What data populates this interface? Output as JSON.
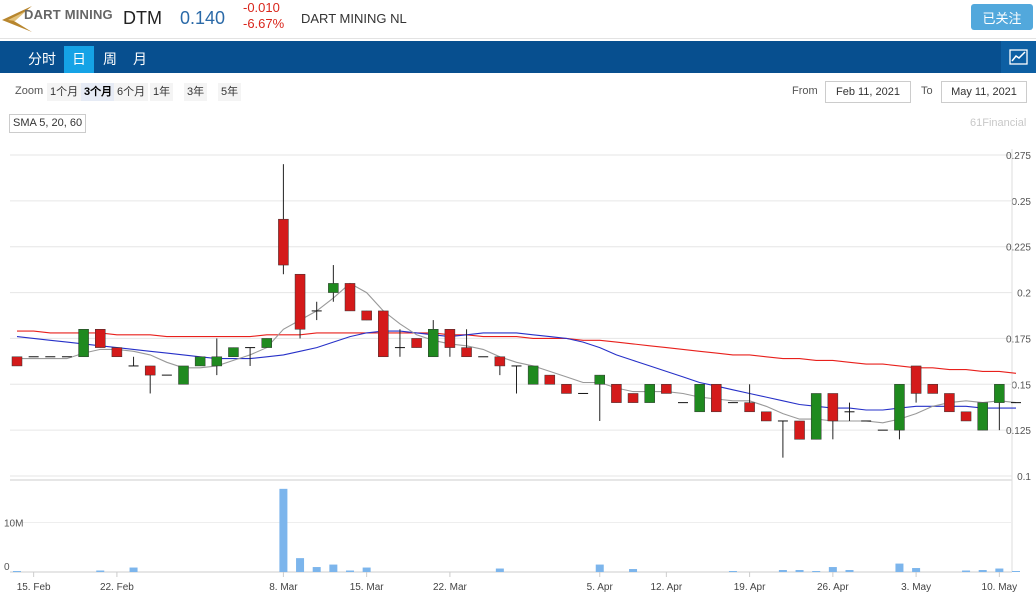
{
  "header": {
    "logo_text": "DART MINING",
    "ticker": "DTM",
    "price": "0.140",
    "change": "-0.010",
    "change_pct": "-6.67%",
    "company": "DART MINING NL",
    "follow_label": "已关注"
  },
  "nav": {
    "tabs": [
      "分时",
      "日",
      "周",
      "月"
    ],
    "active": 1
  },
  "zoom": {
    "label": "Zoom",
    "options": [
      "1个月",
      "3个月",
      "6个月",
      "1年",
      "3年",
      "5年"
    ],
    "selected": 1
  },
  "range": {
    "from_label": "From",
    "from": "Feb 11, 2021",
    "to_label": "To",
    "to": "May 11, 2021"
  },
  "indicator_label": "SMA 5, 20, 60",
  "credit": "61Financial",
  "colors": {
    "up": "#1f8a1f",
    "down": "#d41a1a",
    "sma5": "#999999",
    "sma20": "#2630c8",
    "sma60": "#e8201c",
    "volume": "#7cb5ec",
    "nav_bg": "#074f8f",
    "nav_active": "#15a3e6"
  },
  "chart_data": {
    "type": "candlestick",
    "ylim": [
      0.1,
      0.275
    ],
    "yticks": [
      "0.275",
      "0.25",
      "0.225",
      "0.2",
      "0.175",
      "0.15",
      "0.125",
      "0.1"
    ],
    "volume_ticks": [
      "10M",
      "0"
    ],
    "xticks": [
      {
        "label": "15. Feb",
        "i": 1
      },
      {
        "label": "22. Feb",
        "i": 6
      },
      {
        "label": "8. Mar",
        "i": 16
      },
      {
        "label": "15. Mar",
        "i": 21
      },
      {
        "label": "22. Mar",
        "i": 26
      },
      {
        "label": "5. Apr",
        "i": 35
      },
      {
        "label": "12. Apr",
        "i": 39
      },
      {
        "label": "19. Apr",
        "i": 44
      },
      {
        "label": "26. Apr",
        "i": 49
      },
      {
        "label": "3. May",
        "i": 54
      },
      {
        "label": "10. May",
        "i": 59
      }
    ],
    "ohlc": [
      [
        0.165,
        0.165,
        0.16,
        0.16
      ],
      [
        0.165,
        0.165,
        0.165,
        0.165
      ],
      [
        0.165,
        0.165,
        0.165,
        0.165
      ],
      [
        0.165,
        0.165,
        0.165,
        0.165
      ],
      [
        0.165,
        0.18,
        0.165,
        0.18
      ],
      [
        0.18,
        0.18,
        0.17,
        0.17
      ],
      [
        0.17,
        0.17,
        0.165,
        0.165
      ],
      [
        0.16,
        0.165,
        0.16,
        0.16
      ],
      [
        0.16,
        0.16,
        0.145,
        0.155
      ],
      [
        0.155,
        0.155,
        0.155,
        0.155
      ],
      [
        0.15,
        0.16,
        0.15,
        0.16
      ],
      [
        0.16,
        0.165,
        0.16,
        0.165
      ],
      [
        0.16,
        0.175,
        0.155,
        0.165
      ],
      [
        0.165,
        0.17,
        0.165,
        0.17
      ],
      [
        0.17,
        0.17,
        0.16,
        0.17
      ],
      [
        0.17,
        0.175,
        0.17,
        0.175
      ],
      [
        0.24,
        0.27,
        0.21,
        0.215
      ],
      [
        0.21,
        0.21,
        0.175,
        0.18
      ],
      [
        0.19,
        0.195,
        0.185,
        0.19
      ],
      [
        0.2,
        0.215,
        0.195,
        0.205
      ],
      [
        0.205,
        0.205,
        0.19,
        0.19
      ],
      [
        0.19,
        0.19,
        0.185,
        0.185
      ],
      [
        0.19,
        0.19,
        0.165,
        0.165
      ],
      [
        0.17,
        0.18,
        0.165,
        0.17
      ],
      [
        0.175,
        0.175,
        0.17,
        0.17
      ],
      [
        0.165,
        0.185,
        0.165,
        0.18
      ],
      [
        0.18,
        0.18,
        0.165,
        0.17
      ],
      [
        0.17,
        0.18,
        0.165,
        0.165
      ],
      [
        0.165,
        0.165,
        0.165,
        0.165
      ],
      [
        0.165,
        0.165,
        0.155,
        0.16
      ],
      [
        0.16,
        0.16,
        0.145,
        0.16
      ],
      [
        0.15,
        0.16,
        0.15,
        0.16
      ],
      [
        0.155,
        0.155,
        0.15,
        0.15
      ],
      [
        0.15,
        0.15,
        0.145,
        0.145
      ],
      [
        0.145,
        0.145,
        0.145,
        0.145
      ],
      [
        0.15,
        0.155,
        0.13,
        0.155
      ],
      [
        0.15,
        0.15,
        0.14,
        0.14
      ],
      [
        0.145,
        0.145,
        0.14,
        0.14
      ],
      [
        0.14,
        0.15,
        0.14,
        0.15
      ],
      [
        0.15,
        0.15,
        0.145,
        0.145
      ],
      [
        0.14,
        0.14,
        0.14,
        0.14
      ],
      [
        0.135,
        0.15,
        0.135,
        0.15
      ],
      [
        0.15,
        0.15,
        0.135,
        0.135
      ],
      [
        0.14,
        0.14,
        0.14,
        0.14
      ],
      [
        0.14,
        0.15,
        0.135,
        0.135
      ],
      [
        0.135,
        0.135,
        0.13,
        0.13
      ],
      [
        0.13,
        0.13,
        0.11,
        0.13
      ],
      [
        0.13,
        0.13,
        0.12,
        0.12
      ],
      [
        0.12,
        0.145,
        0.12,
        0.145
      ],
      [
        0.145,
        0.145,
        0.12,
        0.13
      ],
      [
        0.135,
        0.14,
        0.13,
        0.135
      ],
      [
        0.13,
        0.13,
        0.13,
        0.13
      ],
      [
        0.125,
        0.125,
        0.125,
        0.125
      ],
      [
        0.125,
        0.15,
        0.12,
        0.15
      ],
      [
        0.16,
        0.16,
        0.14,
        0.145
      ],
      [
        0.15,
        0.15,
        0.145,
        0.145
      ],
      [
        0.145,
        0.145,
        0.135,
        0.135
      ],
      [
        0.135,
        0.135,
        0.13,
        0.13
      ],
      [
        0.125,
        0.14,
        0.125,
        0.14
      ],
      [
        0.14,
        0.15,
        0.125,
        0.15
      ],
      [
        0.14,
        0.14,
        0.14,
        0.14
      ]
    ],
    "volume": [
      0.2,
      0,
      0,
      0,
      0,
      0.3,
      0,
      0.9,
      0,
      0,
      0,
      0,
      0,
      0,
      0,
      0,
      16.8,
      2.8,
      1.0,
      1.5,
      0.3,
      0.9,
      0,
      0,
      0,
      0,
      0,
      0,
      0,
      0.7,
      0,
      0,
      0,
      0,
      0,
      1.5,
      0,
      0.6,
      0,
      0,
      0,
      0,
      0,
      0.2,
      0,
      0,
      0.4,
      0.4,
      0.2,
      1.0,
      0.4,
      0,
      0,
      1.7,
      0.8,
      0,
      0,
      0.3,
      0.4,
      0.7,
      0.2
    ],
    "sma5": [
      0.164,
      0.164,
      0.164,
      0.164,
      0.167,
      0.169,
      0.169,
      0.168,
      0.166,
      0.162,
      0.159,
      0.159,
      0.16,
      0.163,
      0.166,
      0.17,
      0.18,
      0.185,
      0.19,
      0.197,
      0.205,
      0.2,
      0.19,
      0.183,
      0.177,
      0.174,
      0.172,
      0.171,
      0.169,
      0.165,
      0.162,
      0.16,
      0.157,
      0.154,
      0.151,
      0.151,
      0.148,
      0.146,
      0.146,
      0.146,
      0.145,
      0.143,
      0.142,
      0.141,
      0.141,
      0.138,
      0.134,
      0.131,
      0.131,
      0.13,
      0.13,
      0.13,
      0.129,
      0.131,
      0.134,
      0.138,
      0.14,
      0.141,
      0.14,
      0.141,
      0.14
    ],
    "sma20": [
      0.176,
      0.175,
      0.174,
      0.173,
      0.172,
      0.171,
      0.17,
      0.169,
      0.168,
      0.167,
      0.166,
      0.165,
      0.164,
      0.164,
      0.164,
      0.165,
      0.166,
      0.168,
      0.17,
      0.173,
      0.176,
      0.178,
      0.179,
      0.179,
      0.178,
      0.177,
      0.176,
      0.177,
      0.178,
      0.178,
      0.178,
      0.177,
      0.176,
      0.175,
      0.173,
      0.17,
      0.166,
      0.163,
      0.16,
      0.157,
      0.154,
      0.151,
      0.149,
      0.147,
      0.145,
      0.143,
      0.141,
      0.139,
      0.138,
      0.137,
      0.137,
      0.136,
      0.136,
      0.137,
      0.138,
      0.138,
      0.138,
      0.138,
      0.137,
      0.137,
      0.137
    ],
    "sma60": [
      0.179,
      0.179,
      0.178,
      0.178,
      0.178,
      0.178,
      0.177,
      0.177,
      0.177,
      0.176,
      0.176,
      0.176,
      0.176,
      0.176,
      0.176,
      0.177,
      0.177,
      0.177,
      0.178,
      0.178,
      0.178,
      0.178,
      0.178,
      0.178,
      0.178,
      0.178,
      0.177,
      0.177,
      0.176,
      0.176,
      0.176,
      0.175,
      0.175,
      0.175,
      0.174,
      0.174,
      0.173,
      0.172,
      0.171,
      0.17,
      0.169,
      0.168,
      0.167,
      0.166,
      0.166,
      0.165,
      0.164,
      0.164,
      0.163,
      0.163,
      0.162,
      0.161,
      0.161,
      0.16,
      0.159,
      0.159,
      0.158,
      0.158,
      0.157,
      0.157,
      0.156
    ]
  }
}
